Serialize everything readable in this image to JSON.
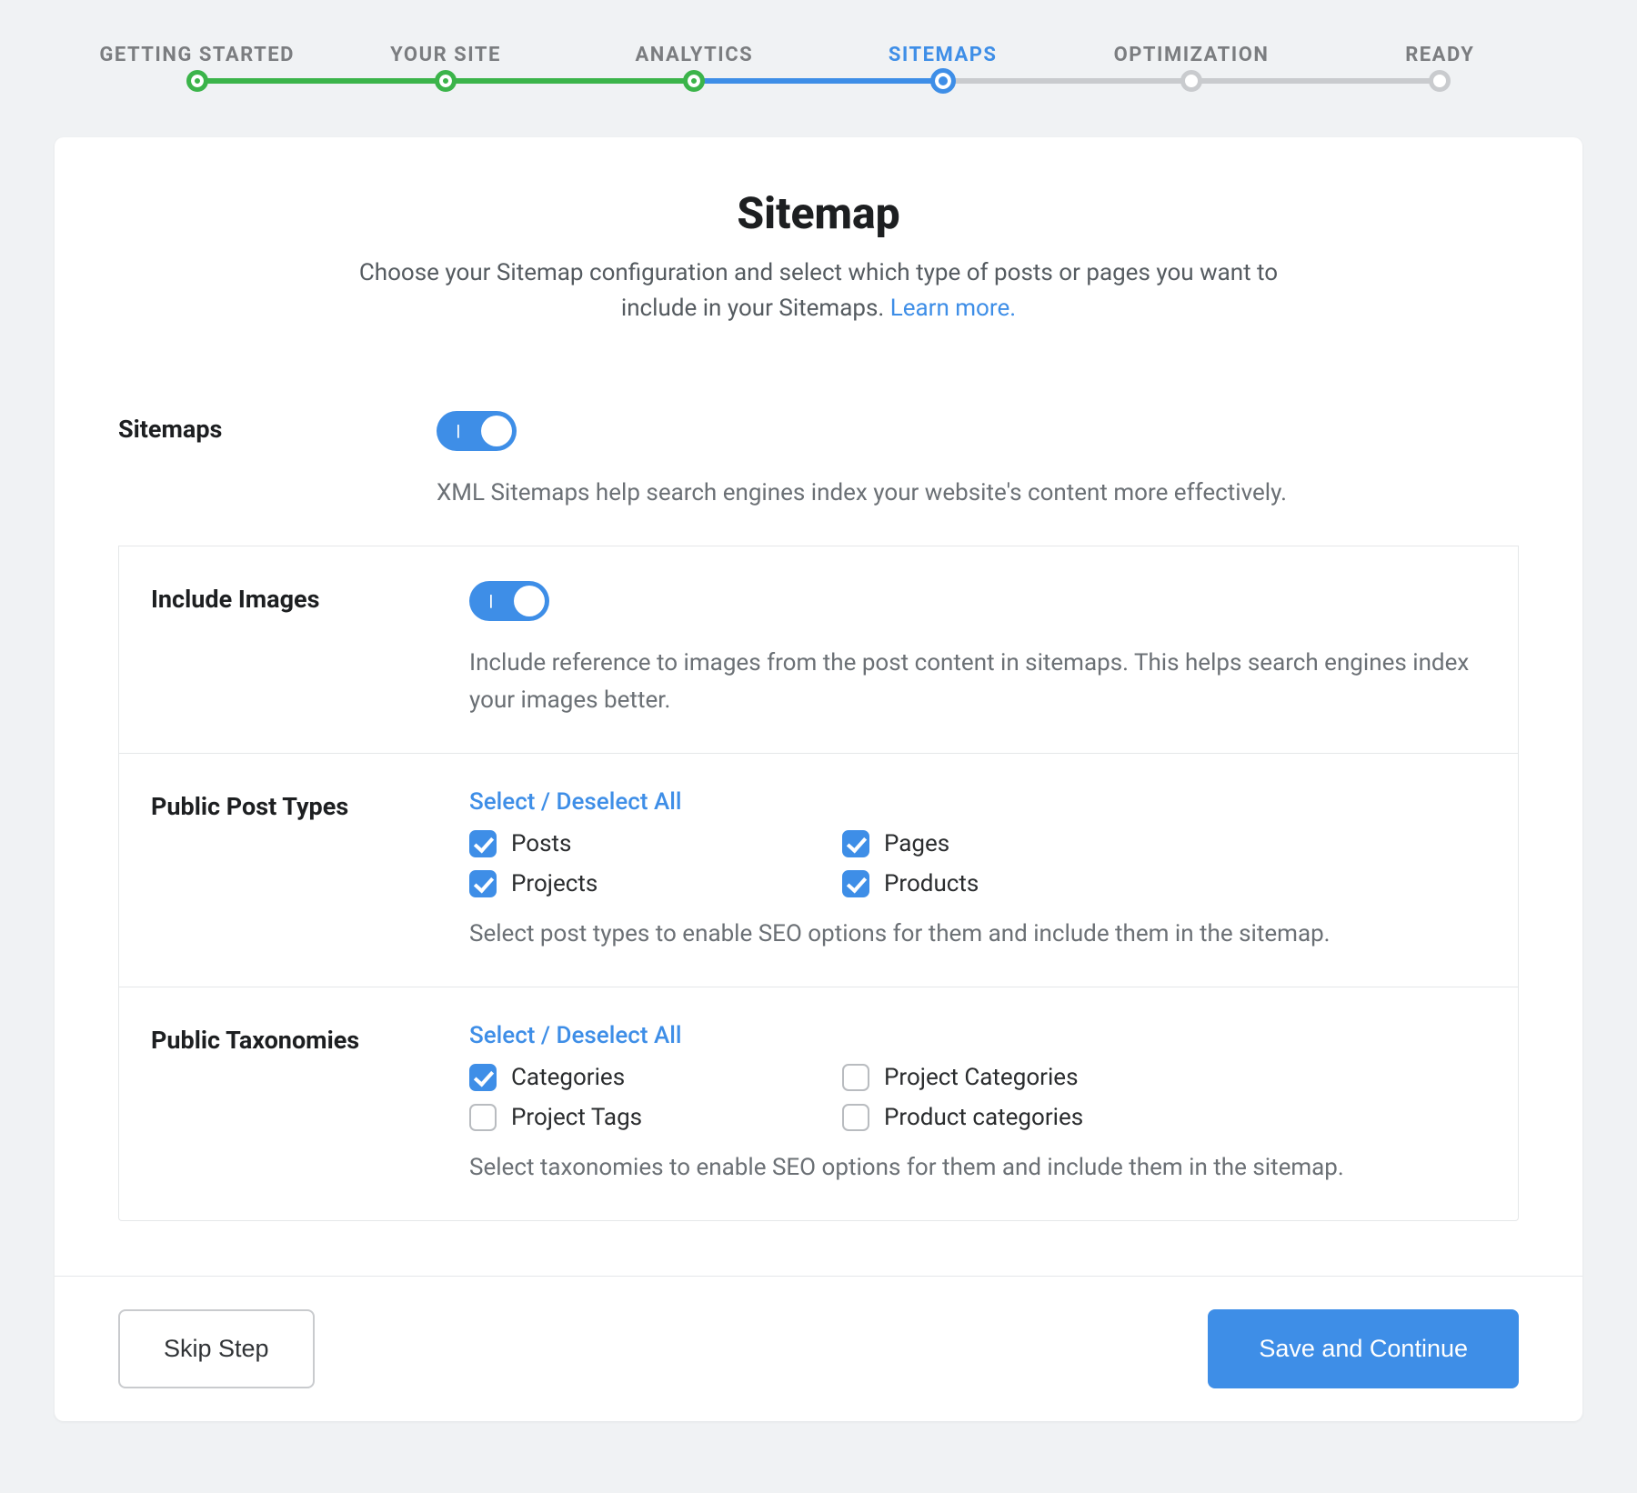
{
  "stepper": {
    "steps": [
      {
        "label": "GETTING STARTED",
        "state": "done"
      },
      {
        "label": "YOUR SITE",
        "state": "done"
      },
      {
        "label": "ANALYTICS",
        "state": "done"
      },
      {
        "label": "SITEMAPS",
        "state": "current"
      },
      {
        "label": "OPTIMIZATION",
        "state": "future"
      },
      {
        "label": "READY",
        "state": "future"
      }
    ],
    "colors": {
      "done": "#3bb44a",
      "current": "#3e8ee7",
      "future": "#c9cbce"
    }
  },
  "header": {
    "title": "Sitemap",
    "subtitle_before": "Choose your Sitemap configuration and select which type of posts or pages you want to include in your Sitemaps. ",
    "learn_more": "Learn more."
  },
  "sections": {
    "sitemaps": {
      "label": "Sitemaps",
      "toggle_on": true,
      "help": "XML Sitemaps help search engines index your website's content more effectively."
    },
    "include_images": {
      "label": "Include Images",
      "toggle_on": true,
      "help": "Include reference to images from the post content in sitemaps. This helps search engines index your images better."
    },
    "post_types": {
      "label": "Public Post Types",
      "select_all": "Select / Deselect All",
      "items": [
        {
          "label": "Posts",
          "checked": true
        },
        {
          "label": "Pages",
          "checked": true
        },
        {
          "label": "Projects",
          "checked": true
        },
        {
          "label": "Products",
          "checked": true
        }
      ],
      "help": "Select post types to enable SEO options for them and include them in the sitemap."
    },
    "taxonomies": {
      "label": "Public Taxonomies",
      "select_all": "Select / Deselect All",
      "items": [
        {
          "label": "Categories",
          "checked": true
        },
        {
          "label": "Project Categories",
          "checked": false
        },
        {
          "label": "Project Tags",
          "checked": false
        },
        {
          "label": "Product categories",
          "checked": false
        }
      ],
      "help": "Select taxonomies to enable SEO options for them and include them in the sitemap."
    }
  },
  "footer": {
    "skip": "Skip Step",
    "save": "Save and Continue"
  },
  "style": {
    "page_bg": "#f0f2f4",
    "card_bg": "#ffffff",
    "accent": "#3e8ee7",
    "success": "#3bb44a",
    "text": "#1d1f21",
    "muted": "#6b7075",
    "border": "#e5e7e9"
  }
}
